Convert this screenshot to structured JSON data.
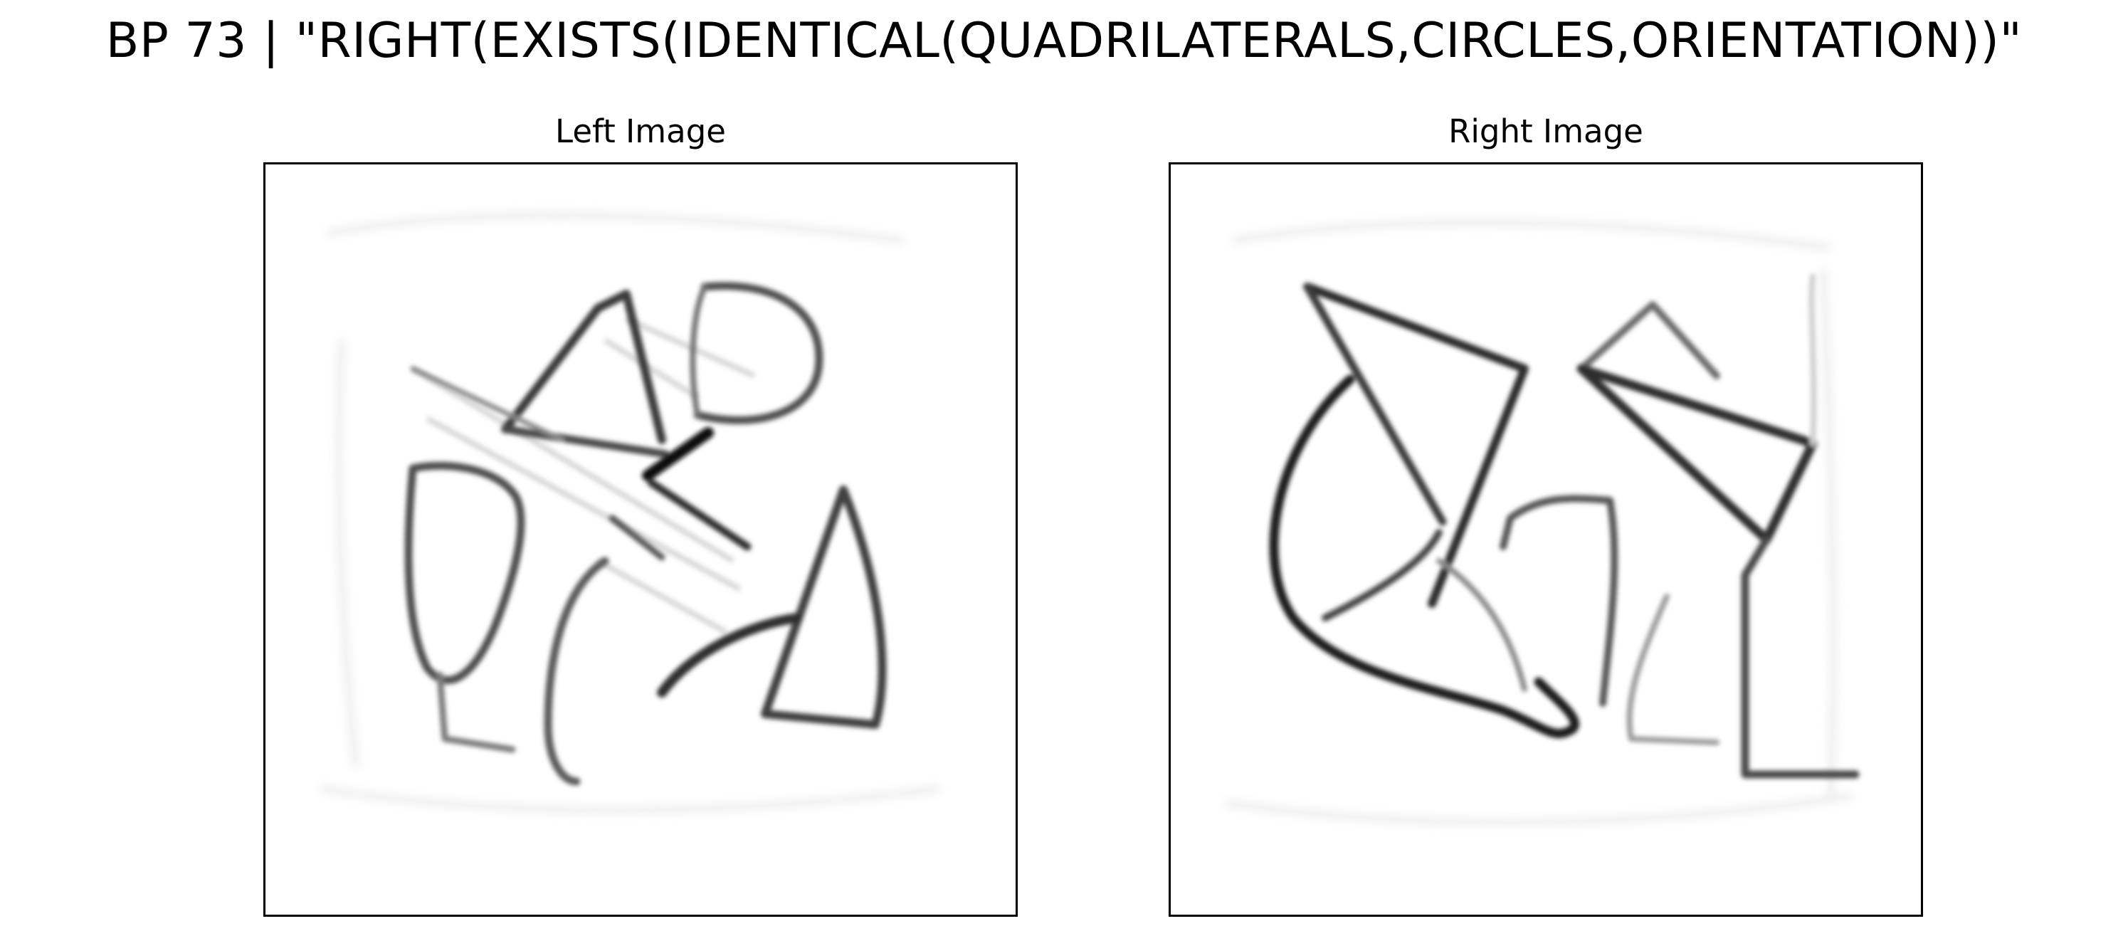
{
  "figure": {
    "title": "BP 73 | \"RIGHT(EXISTS(IDENTICAL(QUADRILATERALS,CIRCLES,ORIENTATION))\""
  },
  "panels": [
    {
      "title": "Left Image"
    },
    {
      "title": "Right Image"
    }
  ]
}
